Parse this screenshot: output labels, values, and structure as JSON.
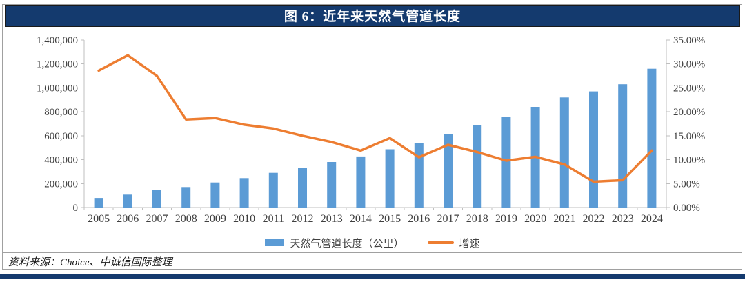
{
  "header": {
    "title": "图 6：近年来天然气管道长度"
  },
  "colors": {
    "banner_navy": "#143a6e",
    "bar_blue": "#5B9BD5",
    "line_orange": "#ED7D31",
    "axis_line": "#bfbfbf",
    "axis_text": "#404040"
  },
  "chart_data": {
    "type": "bar",
    "subtype": "combo-bar-line-dual-axis",
    "title": "图 6：近年来天然气管道长度",
    "categories": [
      "2005",
      "2006",
      "2007",
      "2008",
      "2009",
      "2010",
      "2011",
      "2012",
      "2013",
      "2014",
      "2015",
      "2016",
      "2017",
      "2018",
      "2019",
      "2020",
      "2021",
      "2022",
      "2023",
      "2024"
    ],
    "series": [
      {
        "name": "天然气管道长度（公里）",
        "type": "bar",
        "axis": "left",
        "color": "#5B9BD5",
        "values": [
          80000,
          108000,
          144000,
          171000,
          209000,
          246000,
          290000,
          329000,
          380000,
          427000,
          487000,
          540000,
          613000,
          688000,
          760000,
          841000,
          920000,
          970000,
          1030000,
          1160000
        ]
      },
      {
        "name": "增速",
        "type": "line",
        "axis": "right",
        "color": "#ED7D31",
        "values_percent": [
          28.6,
          31.8,
          27.5,
          18.4,
          18.7,
          17.3,
          16.5,
          15.0,
          13.7,
          11.9,
          14.5,
          10.5,
          13.1,
          11.6,
          9.8,
          10.6,
          9.0,
          5.4,
          5.7,
          11.9
        ]
      }
    ],
    "left_axis": {
      "min": 0,
      "max": 1400000,
      "step": 200000,
      "tick_labels": [
        "0",
        "200,000",
        "400,000",
        "600,000",
        "800,000",
        "1,000,000",
        "1,200,000",
        "1,400,000"
      ]
    },
    "right_axis": {
      "min": 0,
      "max": 35,
      "step": 5,
      "tick_labels": [
        "0.00%",
        "5.00%",
        "10.00%",
        "15.00%",
        "20.00%",
        "25.00%",
        "30.00%",
        "35.00%"
      ]
    },
    "grid": false,
    "legend_position": "bottom"
  },
  "footer": {
    "source": "资料来源：Choice、中诚信国际整理"
  }
}
